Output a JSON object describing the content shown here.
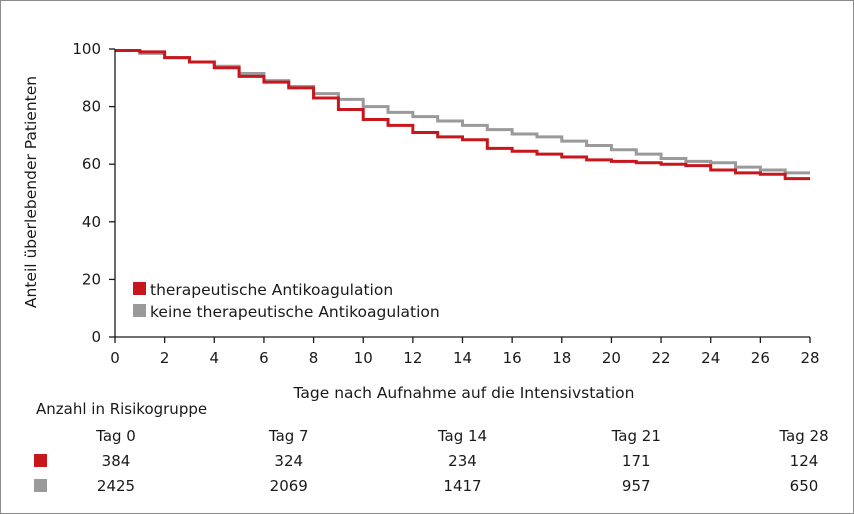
{
  "chart_data": {
    "type": "line",
    "step": true,
    "xlabel": "Tage nach Aufnahme auf die Intensivstation",
    "ylabel": "Anteil überlebender Patienten",
    "xlim": [
      0,
      28
    ],
    "ylim": [
      0,
      100
    ],
    "xticks": [
      0,
      2,
      4,
      6,
      8,
      10,
      12,
      14,
      16,
      18,
      20,
      22,
      24,
      26,
      28
    ],
    "yticks": [
      0,
      20,
      40,
      60,
      80,
      100
    ],
    "grid": false,
    "legend_position": "lower-left",
    "series": [
      {
        "name": "therapeutische Antikoagulation",
        "color": "#c8161d",
        "x": [
          0,
          1,
          2,
          3,
          4,
          5,
          6,
          7,
          8,
          9,
          10,
          11,
          12,
          13,
          14,
          15,
          16,
          17,
          18,
          19,
          20,
          21,
          22,
          23,
          24,
          25,
          26,
          27,
          28
        ],
        "values": [
          99.5,
          99.0,
          97.0,
          95.5,
          93.5,
          90.5,
          88.5,
          86.5,
          83.0,
          79.0,
          75.5,
          73.5,
          71.0,
          69.5,
          68.5,
          65.5,
          64.5,
          63.5,
          62.5,
          61.5,
          61.0,
          60.5,
          60.0,
          59.5,
          58.0,
          57.0,
          56.5,
          55.0,
          55.0
        ]
      },
      {
        "name": "keine therapeutische Antikoagulation",
        "color": "#9a9a9a",
        "x": [
          0,
          1,
          2,
          3,
          4,
          5,
          6,
          7,
          8,
          9,
          10,
          11,
          12,
          13,
          14,
          15,
          16,
          17,
          18,
          19,
          20,
          21,
          22,
          23,
          24,
          25,
          26,
          27,
          28
        ],
        "values": [
          99.5,
          98.5,
          97.0,
          95.5,
          94.0,
          91.5,
          89.0,
          87.0,
          84.5,
          82.5,
          80.0,
          78.0,
          76.5,
          75.0,
          73.5,
          72.0,
          70.5,
          69.5,
          68.0,
          66.5,
          65.0,
          63.5,
          62.0,
          61.0,
          60.5,
          59.0,
          58.0,
          57.0,
          57.0
        ]
      }
    ],
    "risk_table": {
      "title": "Anzahl in Risikogruppe",
      "days": [
        0,
        7,
        14,
        21,
        28
      ],
      "headers": [
        "Tag 0",
        "Tag 7",
        "Tag 14",
        "Tag 21",
        "Tag 28"
      ],
      "rows": [
        {
          "color": "#c8161d",
          "values": [
            "384",
            "324",
            "234",
            "171",
            "124"
          ]
        },
        {
          "color": "#9a9a9a",
          "values": [
            "2425",
            "2069",
            "1417",
            "957",
            "650"
          ]
        }
      ]
    }
  }
}
